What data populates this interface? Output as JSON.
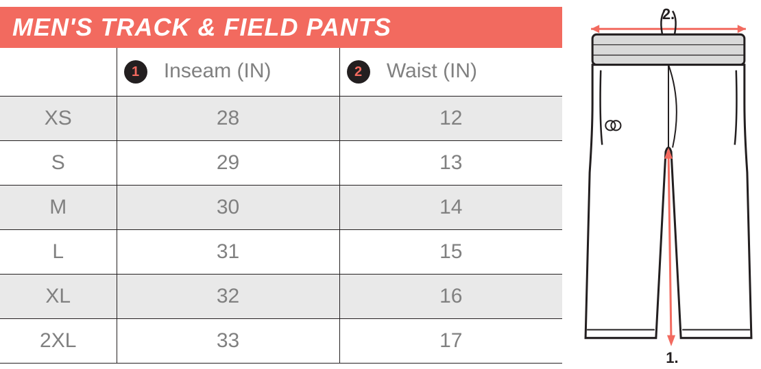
{
  "title": "MEN'S TRACK & FIELD PANTS",
  "title_bg": "#f26a5f",
  "columns": [
    {
      "badge": "1",
      "label": "Inseam (IN)"
    },
    {
      "badge": "2",
      "label": "Waist (IN)"
    }
  ],
  "rows": [
    {
      "size": "XS",
      "inseam": "28",
      "waist": "12",
      "alt": true
    },
    {
      "size": "S",
      "inseam": "29",
      "waist": "13",
      "alt": false
    },
    {
      "size": "M",
      "inseam": "30",
      "waist": "14",
      "alt": true
    },
    {
      "size": "L",
      "inseam": "31",
      "waist": "15",
      "alt": false
    },
    {
      "size": "XL",
      "inseam": "32",
      "waist": "16",
      "alt": true
    },
    {
      "size": "2XL",
      "inseam": "33",
      "waist": "17",
      "alt": false
    }
  ],
  "diagram": {
    "label_top": "2.",
    "label_bottom": "1.",
    "accent_color": "#f26a5f",
    "outline_color": "#231f20",
    "waistband_fill": "#d9d9d9"
  },
  "colors": {
    "header_text": "#808080",
    "body_text": "#808080",
    "border": "#231f20",
    "alt_row": "#e9e9e9",
    "badge_bg": "#231f20",
    "badge_text": "#f26a5f"
  }
}
